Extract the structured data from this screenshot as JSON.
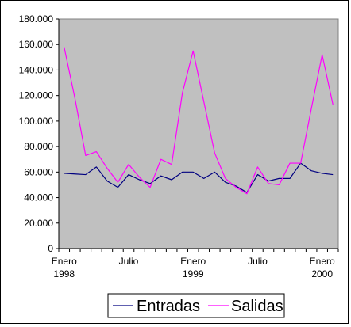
{
  "chart_data": {
    "type": "line",
    "title": "",
    "xlabel": "",
    "ylabel": "",
    "ylim": [
      0,
      180000
    ],
    "y_ticks": [
      0,
      20000,
      40000,
      60000,
      80000,
      100000,
      120000,
      140000,
      160000,
      180000
    ],
    "y_tick_labels": [
      "0",
      "20.000",
      "40.000",
      "60.000",
      "80.000",
      "100.000",
      "120.000",
      "140.000",
      "160.000",
      "180.000"
    ],
    "x_ticks": [
      {
        "index": 0,
        "lines": [
          "Enero",
          "1998"
        ]
      },
      {
        "index": 6,
        "lines": [
          "Julio"
        ]
      },
      {
        "index": 12,
        "lines": [
          "Enero",
          "1999"
        ]
      },
      {
        "index": 18,
        "lines": [
          "Julio"
        ]
      },
      {
        "index": 24,
        "lines": [
          "Enero",
          "2000"
        ]
      }
    ],
    "point_count": 26,
    "grid": false,
    "plot_background": "#c0c0c0",
    "legend_position": "bottom",
    "series": [
      {
        "name": "Entradas",
        "color": "#000080",
        "values": [
          59000,
          58500,
          58000,
          64000,
          53000,
          48000,
          58000,
          54000,
          51000,
          57000,
          54000,
          60000,
          60000,
          55000,
          60000,
          52000,
          49000,
          44000,
          58000,
          53000,
          55000,
          55000,
          67000,
          61000,
          59000,
          58000
        ]
      },
      {
        "name": "Salidas",
        "color": "#ff00ff",
        "values": [
          158000,
          118000,
          73000,
          76000,
          63000,
          52000,
          66000,
          56000,
          48000,
          70000,
          66000,
          122000,
          155000,
          115000,
          75000,
          55000,
          48000,
          43000,
          64000,
          51000,
          50000,
          67000,
          67000,
          110000,
          152000,
          113000
        ]
      }
    ]
  }
}
